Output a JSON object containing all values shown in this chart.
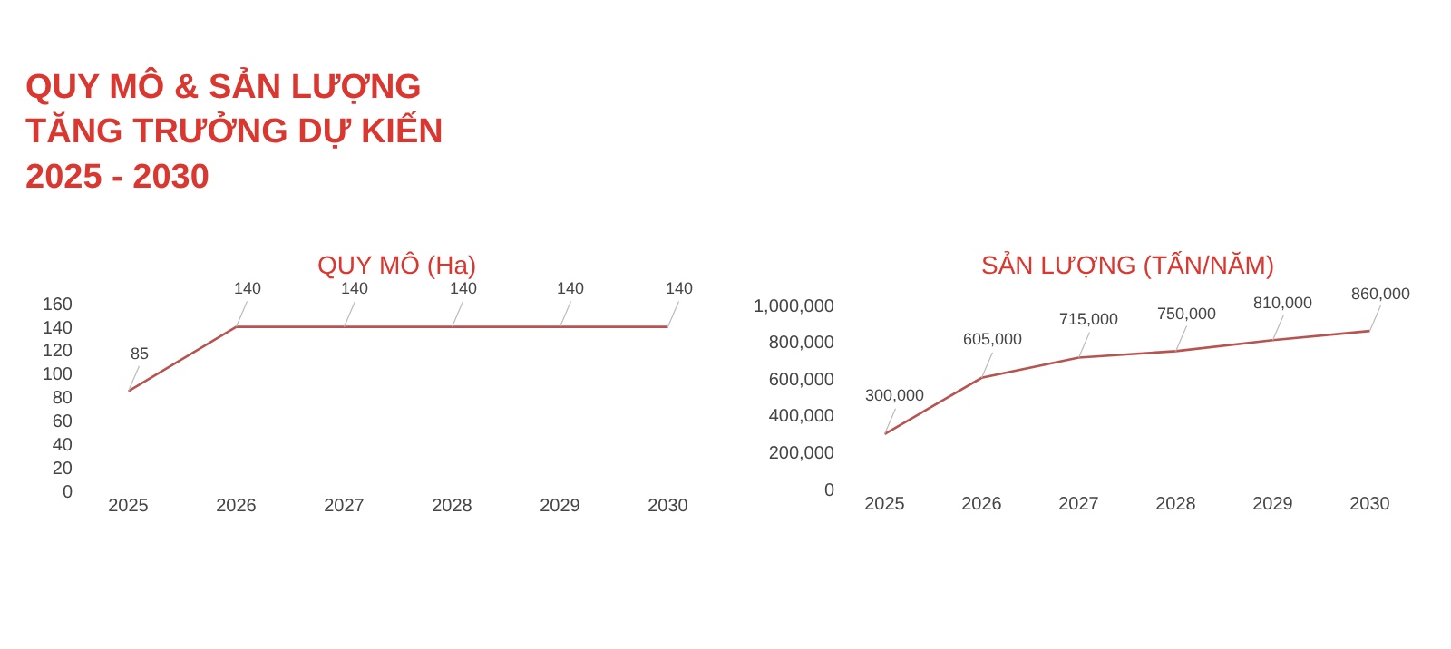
{
  "chart_data": [
    {
      "type": "line",
      "title": "QUY MÔ (Ha)",
      "annotations": [
        "QUY MÔ & SẢN LƯỢNG\nTĂNG TRƯỞNG DỰ KIẾN\n2025 - 2030"
      ],
      "categories": [
        "2025",
        "2026",
        "2027",
        "2028",
        "2029",
        "2030"
      ],
      "series": [
        {
          "color": "#b85450",
          "values": [
            85,
            140,
            140,
            140,
            140,
            140
          ]
        }
      ],
      "ylim": [
        0,
        160
      ],
      "yticks": [
        0,
        20,
        40,
        60,
        80,
        100,
        120,
        140,
        160
      ],
      "data_labels": true,
      "marker": "none",
      "line_style": "solid"
    },
    {
      "type": "line",
      "title": "SẢN LƯỢNG (TẤN/NĂM)",
      "categories": [
        "2025",
        "2026",
        "2027",
        "2028",
        "2029",
        "2030"
      ],
      "series": [
        {
          "color": "#b85450",
          "values": [
            300000,
            605000,
            715000,
            750000,
            810000,
            860000
          ],
          "value_labels": [
            "300,000",
            "605,000",
            "715,000",
            "750,000",
            "810,000",
            "860,000"
          ]
        }
      ],
      "ylim": [
        0,
        1000000
      ],
      "yticks": [
        {
          "value": 0,
          "label": "0"
        },
        {
          "value": 200000,
          "label": "200,000"
        },
        {
          "value": 400000,
          "label": "400,000"
        },
        {
          "value": 600000,
          "label": "600,000"
        },
        {
          "value": 800000,
          "label": "800,000"
        },
        {
          "value": 1000000,
          "label": "1,000,000"
        }
      ],
      "marker": "none",
      "line_style": "solid"
    }
  ]
}
